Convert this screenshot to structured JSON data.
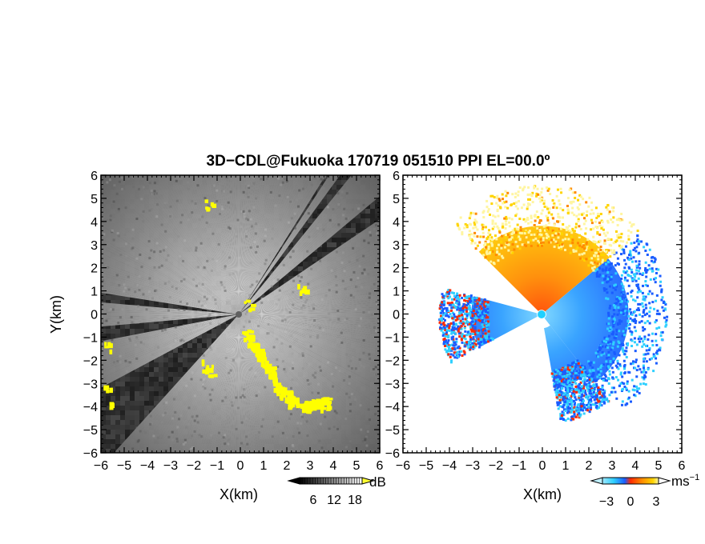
{
  "title": "3D−CDL@Fukuoka 170719 051510 PPI EL=00.0º",
  "colors": {
    "background": "#ffffff",
    "reflectivity_bg": "#2a2a2a",
    "reflectivity_bright": "#f0f0f0",
    "reflectivity_highlight": "#ffff00",
    "velocity_negative": "#1a5cff",
    "velocity_cyan": "#2fd0ff",
    "velocity_zero": "#ff2a00",
    "velocity_positive": "#ffd400",
    "velocity_pale": "#fff5a0"
  },
  "chart_data": [
    {
      "type": "heatmap",
      "panel": "reflectivity",
      "xlabel": "X(km)",
      "ylabel": "Y(km)",
      "xlim": [
        -6,
        6
      ],
      "ylim": [
        -6,
        6
      ],
      "xticks": [
        "−6",
        "−5",
        "−4",
        "−3",
        "−2",
        "−1",
        "0",
        "1",
        "2",
        "3",
        "4",
        "5",
        "6"
      ],
      "yticks": [
        "6",
        "5",
        "4",
        "3",
        "2",
        "1",
        "0",
        "−1",
        "−2",
        "−3",
        "−4",
        "−5",
        "−6"
      ],
      "colorbar": {
        "unit": "dB",
        "ticks": [
          "6",
          "12",
          "18"
        ],
        "range": [
          0,
          24
        ]
      },
      "blocked_sectors_deg": [
        [
          -152,
          -132
        ],
        [
          -175,
          -169
        ],
        [
          -189,
          -185
        ],
        [
          34,
          40
        ],
        [
          51,
          54
        ],
        [
          57,
          58
        ]
      ],
      "highlight_echo_points_km": [
        [
          -5.8,
          -1.3
        ],
        [
          -5.8,
          -3.3
        ],
        [
          -5.7,
          -3.9
        ],
        [
          -1.5,
          -2.2
        ],
        [
          -1.3,
          -2.4
        ],
        [
          0.3,
          -0.9
        ],
        [
          0.7,
          -1.6
        ],
        [
          1.2,
          -2.4
        ],
        [
          1.7,
          -3.3
        ],
        [
          2.2,
          -3.7
        ],
        [
          2.8,
          -4.0
        ],
        [
          3.3,
          -3.9
        ],
        [
          3.7,
          -3.8
        ],
        [
          -1.4,
          4.8
        ],
        [
          2.6,
          1.2
        ],
        [
          0.3,
          0.4
        ]
      ]
    },
    {
      "type": "heatmap",
      "panel": "velocity",
      "xlabel": "X(km)",
      "ylabel": "",
      "xlim": [
        -6,
        6
      ],
      "ylim": [
        -6,
        6
      ],
      "xticks": [
        "−6",
        "−5",
        "−4",
        "−3",
        "−2",
        "−1",
        "0",
        "1",
        "2",
        "3",
        "4",
        "5",
        "6"
      ],
      "yticks": [
        "6",
        "5",
        "4",
        "3",
        "2",
        "1",
        "0",
        "−1",
        "−2",
        "−3",
        "−4",
        "−5",
        "−6"
      ],
      "colorbar": {
        "unit": "ms",
        "unit_exponent": "−1",
        "ticks": [
          "−3",
          "0",
          "3"
        ],
        "range": [
          -5,
          5
        ]
      },
      "echo_sectors": [
        {
          "angle_deg": [
            -52,
            40
          ],
          "range_km": [
            0.2,
            5.2
          ],
          "velocity_ms": -2.5
        },
        {
          "angle_deg": [
            40,
            135
          ],
          "range_km": [
            0.2,
            5.3
          ],
          "velocity_ms": 3.5
        },
        {
          "angle_deg": [
            -195,
            -152
          ],
          "range_km": [
            0.2,
            4.2
          ],
          "velocity_ms": -1.5
        },
        {
          "angle_deg": [
            -80,
            -52
          ],
          "range_km": [
            0.6,
            4.5
          ],
          "velocity_ms": -2.0
        }
      ]
    }
  ]
}
